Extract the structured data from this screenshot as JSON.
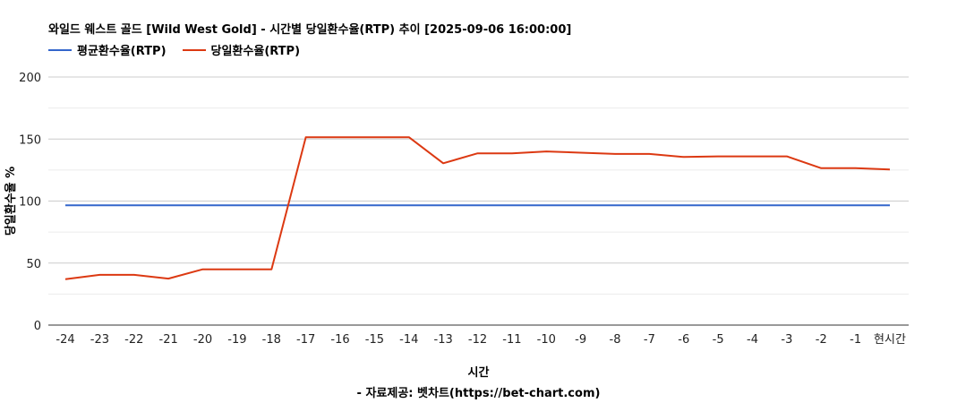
{
  "title": "와일드 웨스트 골드 [Wild West Gold] - 시간별 당일환수율(RTP) 추이 [2025-09-06 16:00:00]",
  "source_note": "- 자료제공: 벳차트(https://bet-chart.com)",
  "chart_data": {
    "type": "line",
    "title": "와일드 웨스트 골드 [Wild West Gold] - 시간별 당일환수율(RTP) 추이 [2025-09-06 16:00:00]",
    "xlabel": "시간",
    "ylabel": "당일환수율 %",
    "ylim": [
      0,
      200
    ],
    "yticks": [
      0,
      50,
      100,
      150,
      200
    ],
    "grid": true,
    "legend_position": "top-left",
    "categories": [
      "-24",
      "-23",
      "-22",
      "-21",
      "-20",
      "-19",
      "-18",
      "-17",
      "-16",
      "-15",
      "-14",
      "-13",
      "-12",
      "-11",
      "-10",
      "-9",
      "-8",
      "-7",
      "-6",
      "-5",
      "-4",
      "-3",
      "-2",
      "-1",
      "현시간"
    ],
    "series": [
      {
        "name": "평균환수율(RTP)",
        "color": "#3366cc",
        "values": [
          96.5,
          96.5,
          96.5,
          96.5,
          96.5,
          96.5,
          96.5,
          96.5,
          96.5,
          96.5,
          96.5,
          96.5,
          96.5,
          96.5,
          96.5,
          96.5,
          96.5,
          96.5,
          96.5,
          96.5,
          96.5,
          96.5,
          96.5,
          96.5,
          96.5
        ]
      },
      {
        "name": "당일환수율(RTP)",
        "color": "#dc3912",
        "values": [
          37,
          40.5,
          40.5,
          37.5,
          45,
          45,
          45,
          151.5,
          151.5,
          151.5,
          151.5,
          130.5,
          138.5,
          138.5,
          140,
          139,
          138,
          138,
          135.5,
          136,
          136,
          136,
          126.5,
          126.5,
          125.5
        ]
      }
    ]
  }
}
